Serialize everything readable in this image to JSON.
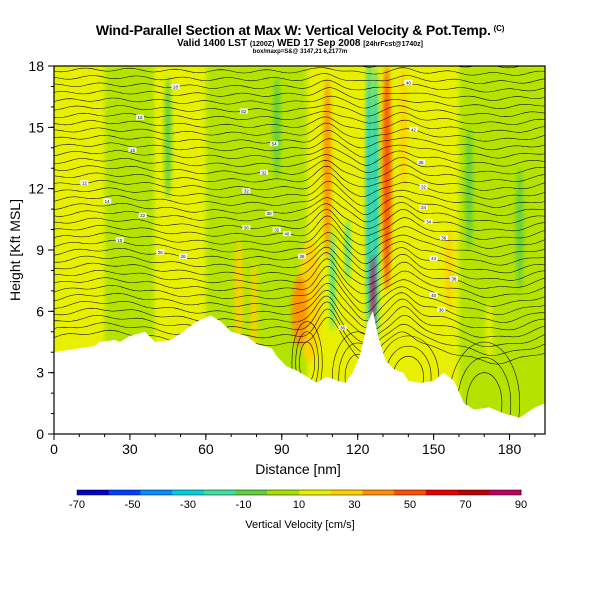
{
  "header": {
    "title": "Wind-Parallel Section at Max W: Vertical Velocity & Pot.Temp.",
    "title_mark": "(C)",
    "subtitle_valid": "Valid 1400 LST",
    "subtitle_z": "(1200Z)",
    "subtitle_date": "WED 17 Sep 2008",
    "subtitle_fcst": "[24hrFcst@1740z]",
    "subtitle2": "box/maxp=S&@ 3147,21 6,2177m"
  },
  "chart_data": {
    "type": "heatmap",
    "title": "Wind-Parallel Section at Max W: Vertical Velocity & Pot.Temp.",
    "xlabel": "Distance [nm]",
    "ylabel": "Height [Kft MSL]",
    "xlim": [
      0,
      194
    ],
    "ylim": [
      0,
      18
    ],
    "xticks": [
      0,
      30,
      60,
      90,
      120,
      150,
      180
    ],
    "yticks": [
      0,
      3,
      6,
      9,
      12,
      15,
      18
    ],
    "colorbar": {
      "label": "Vertical Velocity [cm/s]",
      "ticks": [
        -70,
        -50,
        -30,
        -10,
        10,
        30,
        50,
        70,
        90
      ],
      "min": -70,
      "max": 90,
      "colors": [
        "#0000c8",
        "#0040ff",
        "#0090ff",
        "#00d0e0",
        "#40e0a0",
        "#60d040",
        "#a8e000",
        "#e8f000",
        "#ffd000",
        "#ff9000",
        "#ff5000",
        "#e80000",
        "#c00000",
        "#c00060"
      ]
    },
    "terrain": [
      [
        0,
        4.0
      ],
      [
        10,
        4.2
      ],
      [
        16,
        4.3
      ],
      [
        18,
        4.5
      ],
      [
        24,
        4.6
      ],
      [
        26,
        4.5
      ],
      [
        30,
        4.8
      ],
      [
        36,
        5.0
      ],
      [
        40,
        4.5
      ],
      [
        46,
        4.6
      ],
      [
        50,
        4.9
      ],
      [
        54,
        5.3
      ],
      [
        58,
        5.6
      ],
      [
        62,
        5.8
      ],
      [
        66,
        5.5
      ],
      [
        70,
        5.0
      ],
      [
        76,
        4.8
      ],
      [
        80,
        4.4
      ],
      [
        86,
        4.2
      ],
      [
        88,
        3.8
      ],
      [
        92,
        3.3
      ],
      [
        96,
        3.1
      ],
      [
        100,
        2.8
      ],
      [
        104,
        2.5
      ],
      [
        106,
        2.7
      ],
      [
        108,
        2.8
      ],
      [
        112,
        2.6
      ],
      [
        115,
        2.5
      ],
      [
        118,
        3.0
      ],
      [
        121,
        3.9
      ],
      [
        124,
        5.5
      ],
      [
        126,
        6.0
      ],
      [
        128,
        4.8
      ],
      [
        131,
        3.6
      ],
      [
        134,
        3.2
      ],
      [
        138,
        3.0
      ],
      [
        140,
        2.6
      ],
      [
        145,
        2.5
      ],
      [
        150,
        2.6
      ],
      [
        154,
        3.0
      ],
      [
        158,
        2.6
      ],
      [
        162,
        1.5
      ],
      [
        166,
        1.2
      ],
      [
        172,
        1.3
      ],
      [
        178,
        1.0
      ],
      [
        184,
        0.8
      ],
      [
        190,
        1.3
      ],
      [
        194,
        1.5
      ]
    ],
    "updrafts": [
      {
        "x": 120.0,
        "z": 8.5,
        "width": 4.5,
        "height": 9,
        "value": 12
      },
      {
        "x": 124.5,
        "z": 11.5,
        "width": 2.5,
        "height": 14,
        "value": -28
      },
      {
        "x": 127.0,
        "z": 11.0,
        "width": 2.5,
        "height": 14,
        "value": -32
      },
      {
        "x": 131.5,
        "z": 12.5,
        "width": 3.5,
        "height": 11,
        "value": 45
      },
      {
        "x": 126.0,
        "z": 7.0,
        "width": 1.8,
        "height": 3.5,
        "value": 85
      },
      {
        "x": 108.0,
        "z": 13.0,
        "width": 3.0,
        "height": 9,
        "value": 40
      },
      {
        "x": 101.0,
        "z": 6.5,
        "width": 9.0,
        "height": 6,
        "value": 28
      },
      {
        "x": 97.0,
        "z": 6.0,
        "width": 6.0,
        "height": 3.5,
        "value": 40
      },
      {
        "x": 73.0,
        "z": 7.0,
        "width": 3.5,
        "height": 5,
        "value": 30
      },
      {
        "x": 79.0,
        "z": 6.0,
        "width": 2.5,
        "height": 5,
        "value": 24
      },
      {
        "x": 110.0,
        "z": 7.5,
        "width": 2.0,
        "height": 5,
        "value": -20
      },
      {
        "x": 116.0,
        "z": 9.0,
        "width": 2.0,
        "height": 3,
        "value": -15
      },
      {
        "x": 138.0,
        "z": 15.0,
        "width": 3.0,
        "height": 6,
        "value": 25
      },
      {
        "x": 150.0,
        "z": 14.0,
        "width": 3.0,
        "height": 6,
        "value": 20
      },
      {
        "x": 156.0,
        "z": 8.0,
        "width": 3.0,
        "height": 4,
        "value": 22
      },
      {
        "x": 45.0,
        "z": 14.5,
        "width": 3.0,
        "height": 6,
        "value": -8
      },
      {
        "x": 88.0,
        "z": 15.0,
        "width": 3.0,
        "height": 5,
        "value": -8
      },
      {
        "x": 164.0,
        "z": 12.0,
        "width": 3.0,
        "height": 6,
        "value": -6
      },
      {
        "x": 184.0,
        "z": 10.0,
        "width": 3.0,
        "height": 6,
        "value": -6
      },
      {
        "x": 172.0,
        "z": 5.0,
        "width": 3.0,
        "height": 3,
        "value": 18
      }
    ],
    "theta_contours": {
      "count": 38,
      "base_height": 4.4,
      "top_height": 18.5,
      "wave_x": [
        108,
        123,
        138
      ],
      "wave_amp": [
        1.3,
        -0.8,
        0.7
      ]
    },
    "contour_labels": [
      {
        "x": 12,
        "z": 12.3,
        "text": "12"
      },
      {
        "x": 21,
        "z": 11.4,
        "text": "14"
      },
      {
        "x": 26,
        "z": 9.5,
        "text": "10"
      },
      {
        "x": 31,
        "z": 13.9,
        "text": "18"
      },
      {
        "x": 34,
        "z": 15.5,
        "text": "16"
      },
      {
        "x": 35,
        "z": 10.7,
        "text": "22"
      },
      {
        "x": 42,
        "z": 8.9,
        "text": "26"
      },
      {
        "x": 48,
        "z": 17.0,
        "text": "18"
      },
      {
        "x": 51,
        "z": 8.7,
        "text": "26"
      },
      {
        "x": 75,
        "z": 15.8,
        "text": "52"
      },
      {
        "x": 76,
        "z": 11.9,
        "text": "32"
      },
      {
        "x": 76,
        "z": 10.1,
        "text": "36"
      },
      {
        "x": 83,
        "z": 12.8,
        "text": "32"
      },
      {
        "x": 85,
        "z": 10.8,
        "text": "38"
      },
      {
        "x": 87,
        "z": 14.2,
        "text": "54"
      },
      {
        "x": 88,
        "z": 10.0,
        "text": "32"
      },
      {
        "x": 92,
        "z": 9.8,
        "text": "40"
      },
      {
        "x": 98,
        "z": 8.7,
        "text": "36"
      },
      {
        "x": 114,
        "z": 5.2,
        "text": "36"
      },
      {
        "x": 140,
        "z": 17.2,
        "text": "40"
      },
      {
        "x": 142,
        "z": 14.9,
        "text": "42"
      },
      {
        "x": 145,
        "z": 13.3,
        "text": "36"
      },
      {
        "x": 146,
        "z": 12.1,
        "text": "32"
      },
      {
        "x": 146,
        "z": 11.1,
        "text": "34"
      },
      {
        "x": 148,
        "z": 10.4,
        "text": "34"
      },
      {
        "x": 150,
        "z": 8.6,
        "text": "44"
      },
      {
        "x": 150,
        "z": 6.8,
        "text": "40"
      },
      {
        "x": 154,
        "z": 9.6,
        "text": "36"
      },
      {
        "x": 158,
        "z": 7.6,
        "text": "38"
      },
      {
        "x": 153,
        "z": 6.1,
        "text": "36"
      }
    ]
  }
}
